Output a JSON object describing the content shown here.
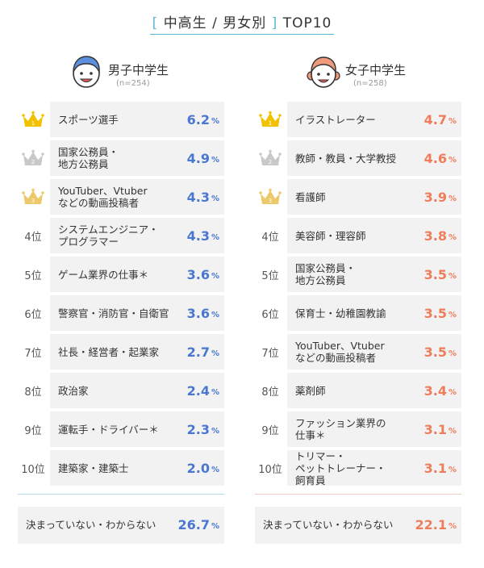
{
  "title": {
    "bracket_open": "[",
    "text": "中高生 / 男女別",
    "bracket_close": "]",
    "suffix": "TOP10"
  },
  "colors": {
    "bracket": "#5bb6d9",
    "male": "#4a78d0",
    "female": "#ef7d5a",
    "gold_crown": "#f2c200",
    "silver_crown": "#c9c9c9",
    "bronze_crown": "#eec96b"
  },
  "pct_unit": "%",
  "chart_data": [
    {
      "type": "table",
      "group": "男子中学生",
      "n_label": "(n=254)",
      "rows": [
        {
          "rank": "1",
          "label": "スポーツ選手",
          "value": "6.2"
        },
        {
          "rank": "2",
          "label": "国家公務員・\n地方公務員",
          "value": "4.9"
        },
        {
          "rank": "3",
          "label": "YouTuber、Vtuber\nなどの動画投稿者",
          "value": "4.3"
        },
        {
          "rank": "4位",
          "label": "システムエンジニア・\nプログラマー",
          "value": "4.3"
        },
        {
          "rank": "5位",
          "label": "ゲーム業界の仕事＊",
          "value": "3.6"
        },
        {
          "rank": "6位",
          "label": "警察官・消防官・自衛官",
          "value": "3.6"
        },
        {
          "rank": "7位",
          "label": "社長・経営者・起業家",
          "value": "2.7"
        },
        {
          "rank": "8位",
          "label": "政治家",
          "value": "2.4"
        },
        {
          "rank": "9位",
          "label": "運転手・ドライバー＊",
          "value": "2.3"
        },
        {
          "rank": "10位",
          "label": "建築家・建築士",
          "value": "2.0"
        }
      ],
      "undecided": {
        "label": "決まっていない・わからない",
        "value": "26.7"
      }
    },
    {
      "type": "table",
      "group": "女子中学生",
      "n_label": "(n=258)",
      "rows": [
        {
          "rank": "1",
          "label": "イラストレーター",
          "value": "4.7"
        },
        {
          "rank": "2",
          "label": "教師・教員・大学教授",
          "value": "4.6"
        },
        {
          "rank": "3",
          "label": "看護師",
          "value": "3.9"
        },
        {
          "rank": "4位",
          "label": "美容師・理容師",
          "value": "3.8"
        },
        {
          "rank": "5位",
          "label": "国家公務員・\n地方公務員",
          "value": "3.5"
        },
        {
          "rank": "6位",
          "label": "保育士・幼稚園教諭",
          "value": "3.5"
        },
        {
          "rank": "7位",
          "label": "YouTuber、Vtuber\nなどの動画投稿者",
          "value": "3.5"
        },
        {
          "rank": "8位",
          "label": "薬剤師",
          "value": "3.4"
        },
        {
          "rank": "9位",
          "label": "ファッション業界の\n仕事＊",
          "value": "3.1"
        },
        {
          "rank": "10位",
          "label": "トリマー・\nペットトレーナー・\n飼育員",
          "value": "3.1"
        }
      ],
      "undecided": {
        "label": "決まっていない・わからない",
        "value": "22.1"
      }
    }
  ]
}
